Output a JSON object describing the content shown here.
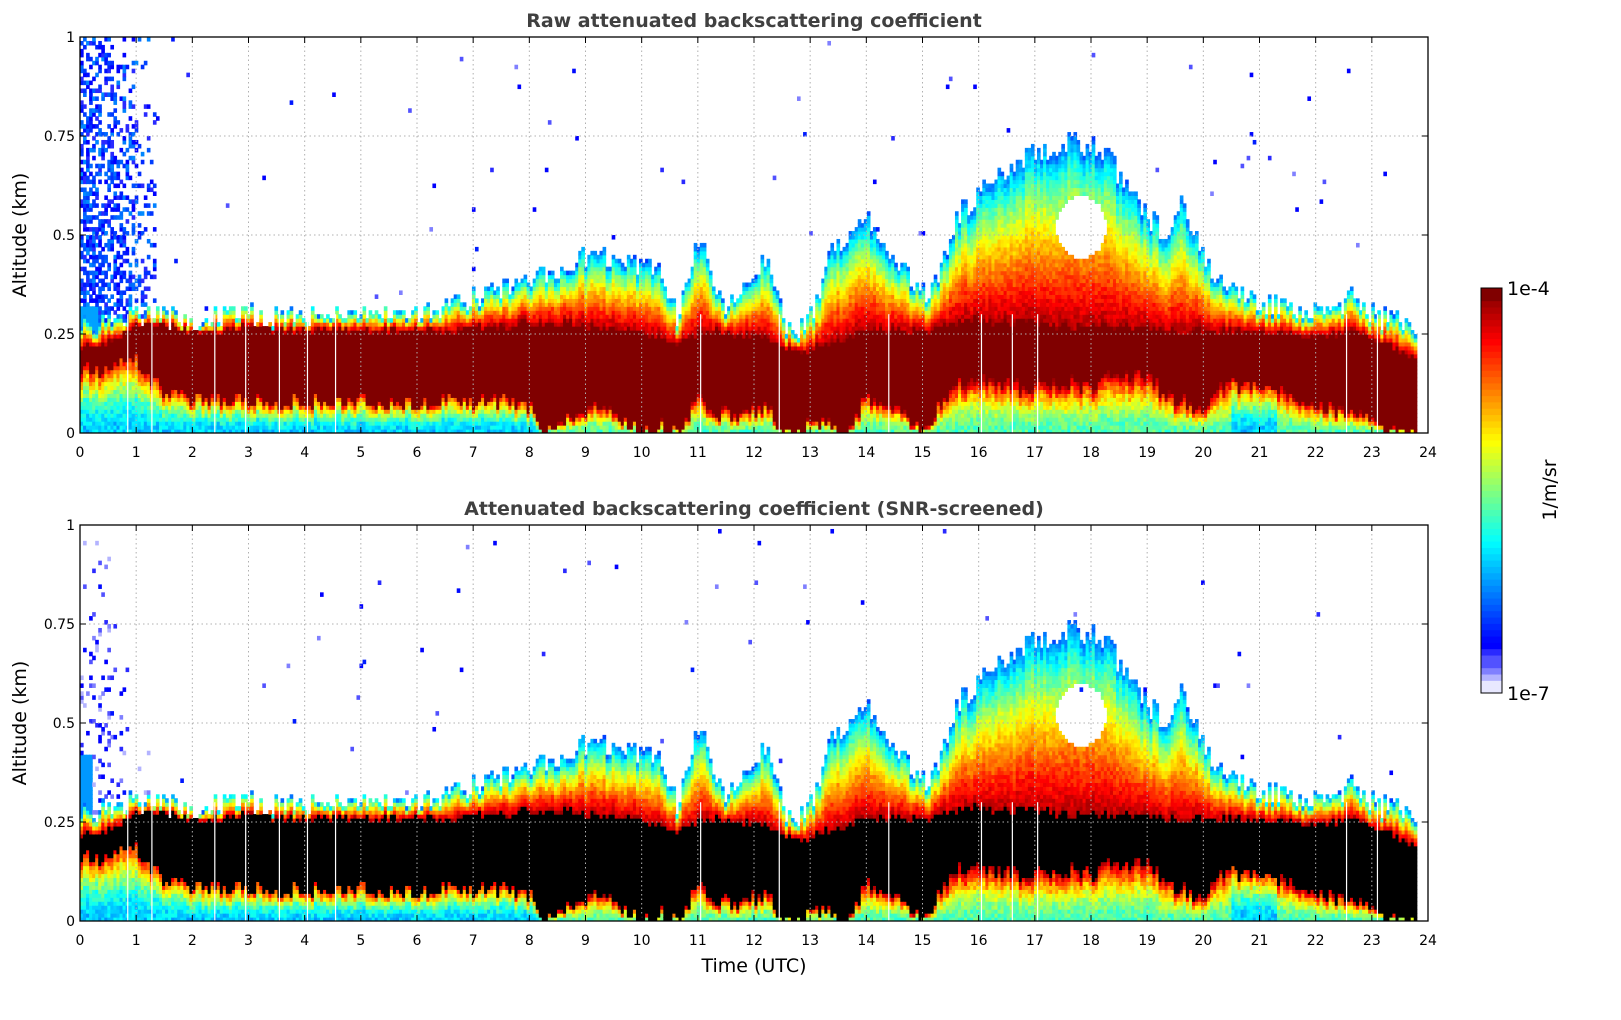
{
  "chart_data": {
    "type": "heatmap",
    "colormap": "jet",
    "colorbar": {
      "label": "1/m/sr",
      "min_label": "1e-7",
      "max_label": "1e-4",
      "scale": "log",
      "range": [
        1e-07,
        0.0001
      ],
      "low_colors": [
        "#e8e8ff",
        "#b3b3ff",
        "#8080ff",
        "#5252ff",
        "#2a2aff",
        "#0000ff"
      ]
    },
    "xlabel": "Time (UTC)",
    "xlim": [
      0,
      24
    ],
    "xticks": [
      "0",
      "1",
      "2",
      "3",
      "4",
      "5",
      "6",
      "7",
      "8",
      "9",
      "10",
      "11",
      "12",
      "13",
      "14",
      "15",
      "16",
      "17",
      "18",
      "19",
      "20",
      "21",
      "22",
      "23",
      "24"
    ],
    "ylim": [
      0,
      1
    ],
    "yticks": [
      "0",
      "0.25",
      "0.5",
      "0.75",
      "1"
    ],
    "grid": true,
    "data_end_time": 23.8,
    "profile_envelope": {
      "time": [
        0.0,
        0.3,
        0.6,
        0.9,
        1.2,
        1.5,
        2.0,
        2.5,
        3.0,
        3.5,
        4.0,
        4.5,
        5.0,
        5.5,
        6.0,
        6.5,
        7.0,
        7.5,
        8.0,
        8.3,
        8.6,
        9.0,
        9.3,
        9.6,
        10.0,
        10.3,
        10.6,
        11.0,
        11.2,
        11.5,
        11.8,
        12.2,
        12.5,
        12.8,
        13.0,
        13.3,
        13.6,
        14.0,
        14.3,
        14.6,
        15.0,
        15.3,
        15.6,
        16.0,
        16.3,
        16.6,
        17.0,
        17.3,
        17.6,
        18.0,
        18.3,
        18.6,
        19.0,
        19.3,
        19.6,
        20.0,
        20.3,
        20.6,
        21.0,
        21.3,
        21.6,
        22.0,
        22.3,
        22.6,
        23.0,
        23.3,
        23.6,
        23.8
      ],
      "aerosol_top_km": [
        0.28,
        0.28,
        0.29,
        0.3,
        0.3,
        0.29,
        0.29,
        0.3,
        0.3,
        0.29,
        0.3,
        0.31,
        0.31,
        0.31,
        0.31,
        0.32,
        0.34,
        0.36,
        0.38,
        0.4,
        0.42,
        0.45,
        0.44,
        0.43,
        0.42,
        0.4,
        0.3,
        0.48,
        0.42,
        0.3,
        0.38,
        0.45,
        0.28,
        0.26,
        0.3,
        0.45,
        0.5,
        0.55,
        0.48,
        0.42,
        0.35,
        0.42,
        0.55,
        0.6,
        0.65,
        0.68,
        0.72,
        0.72,
        0.74,
        0.72,
        0.7,
        0.62,
        0.55,
        0.5,
        0.58,
        0.45,
        0.38,
        0.35,
        0.33,
        0.32,
        0.3,
        0.3,
        0.31,
        0.34,
        0.3,
        0.28,
        0.28,
        0.27
      ],
      "core_top_km": [
        0.22,
        0.22,
        0.24,
        0.27,
        0.28,
        0.27,
        0.26,
        0.26,
        0.27,
        0.26,
        0.26,
        0.26,
        0.26,
        0.26,
        0.26,
        0.26,
        0.27,
        0.27,
        0.28,
        0.28,
        0.28,
        0.27,
        0.27,
        0.26,
        0.25,
        0.24,
        0.23,
        0.25,
        0.26,
        0.25,
        0.25,
        0.24,
        0.22,
        0.2,
        0.21,
        0.23,
        0.24,
        0.26,
        0.26,
        0.26,
        0.26,
        0.27,
        0.28,
        0.29,
        0.28,
        0.28,
        0.28,
        0.27,
        0.27,
        0.27,
        0.27,
        0.27,
        0.27,
        0.26,
        0.26,
        0.26,
        0.26,
        0.26,
        0.26,
        0.25,
        0.25,
        0.25,
        0.25,
        0.26,
        0.24,
        0.22,
        0.2,
        0.18
      ],
      "core_bottom_km": [
        0.16,
        0.16,
        0.17,
        0.19,
        0.14,
        0.1,
        0.09,
        0.08,
        0.08,
        0.08,
        0.08,
        0.08,
        0.08,
        0.08,
        0.08,
        0.08,
        0.08,
        0.08,
        0.06,
        0.0,
        0.03,
        0.05,
        0.08,
        0.04,
        0.0,
        0.03,
        0.0,
        0.1,
        0.06,
        0.05,
        0.05,
        0.07,
        0.0,
        0.0,
        0.04,
        0.02,
        0.0,
        0.1,
        0.08,
        0.06,
        0.0,
        0.08,
        0.13,
        0.14,
        0.14,
        0.12,
        0.13,
        0.13,
        0.13,
        0.13,
        0.14,
        0.14,
        0.15,
        0.1,
        0.08,
        0.06,
        0.12,
        0.12,
        0.12,
        0.12,
        0.1,
        0.08,
        0.06,
        0.05,
        0.03,
        0.0,
        0.0,
        0.0
      ]
    },
    "panels": [
      {
        "id": "raw",
        "title": "Raw attenuated backscattering coefficient",
        "ylabel": "Altitude (km)",
        "saturated_style": "darkred",
        "noise_region": "Strong low-signal noise above the layer from 0 to 1.3 UTC"
      },
      {
        "id": "snr",
        "title": "Attenuated backscattering coefficient (SNR-screened)",
        "ylabel": "Altitude (km)",
        "saturated_style": "black",
        "noise_region": "Sparse screened noise from 0 to 1.3 UTC"
      }
    ]
  }
}
